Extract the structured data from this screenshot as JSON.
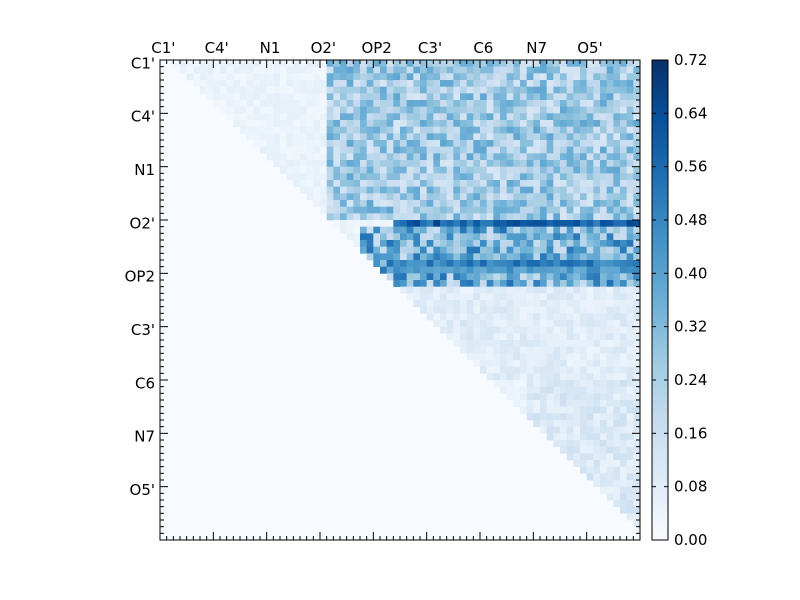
{
  "chart_data": {
    "type": "heatmap",
    "n": 72,
    "colorscale": [
      "#f7fbff",
      "#deebf7",
      "#c6dbef",
      "#9ecae1",
      "#6baed6",
      "#4292c6",
      "#2171b5",
      "#08519c",
      "#08306b"
    ],
    "vmin": 0.0,
    "vmax": 0.72,
    "xticklabels": [
      "C1'",
      "C4'",
      "N1",
      "O2'",
      "OP2",
      "C3'",
      "C6",
      "N7",
      "O5'"
    ],
    "yticklabels": [
      "C1'",
      "C4'",
      "N1",
      "O2'",
      "OP2",
      "C3'",
      "C6",
      "N7",
      "O5'"
    ],
    "tick_every": 8,
    "colorbar_ticks": [
      "0.00",
      "0.08",
      "0.16",
      "0.24",
      "0.32",
      "0.40",
      "0.48",
      "0.56",
      "0.64",
      "0.72"
    ],
    "grid": false,
    "colorbar": "right",
    "upper_triangle_only": true,
    "band_rows": [
      {
        "row": 24,
        "col_start": 35,
        "col_end": 71,
        "mean": 0.58,
        "peak": 0.7
      },
      {
        "row": 30,
        "col_start": 35,
        "col_end": 71,
        "mean": 0.5,
        "peak": 0.6
      },
      {
        "row": 31,
        "col_start": 35,
        "col_end": 71,
        "mean": 0.42,
        "peak": 0.5
      }
    ],
    "regions": [
      {
        "rows": [
          0,
          23
        ],
        "cols": [
          25,
          71
        ],
        "typical": 0.25,
        "max": 0.55
      },
      {
        "rows": [
          25,
          33
        ],
        "cols": [
          30,
          71
        ],
        "typical": 0.35,
        "max": 0.7
      },
      {
        "rows": [
          34,
          47
        ],
        "cols": [
          35,
          71
        ],
        "typical": 0.08,
        "max": 0.3
      },
      {
        "rows": [
          48,
          71
        ],
        "cols": [
          55,
          71
        ],
        "typical": 0.1,
        "max": 0.42
      }
    ]
  }
}
